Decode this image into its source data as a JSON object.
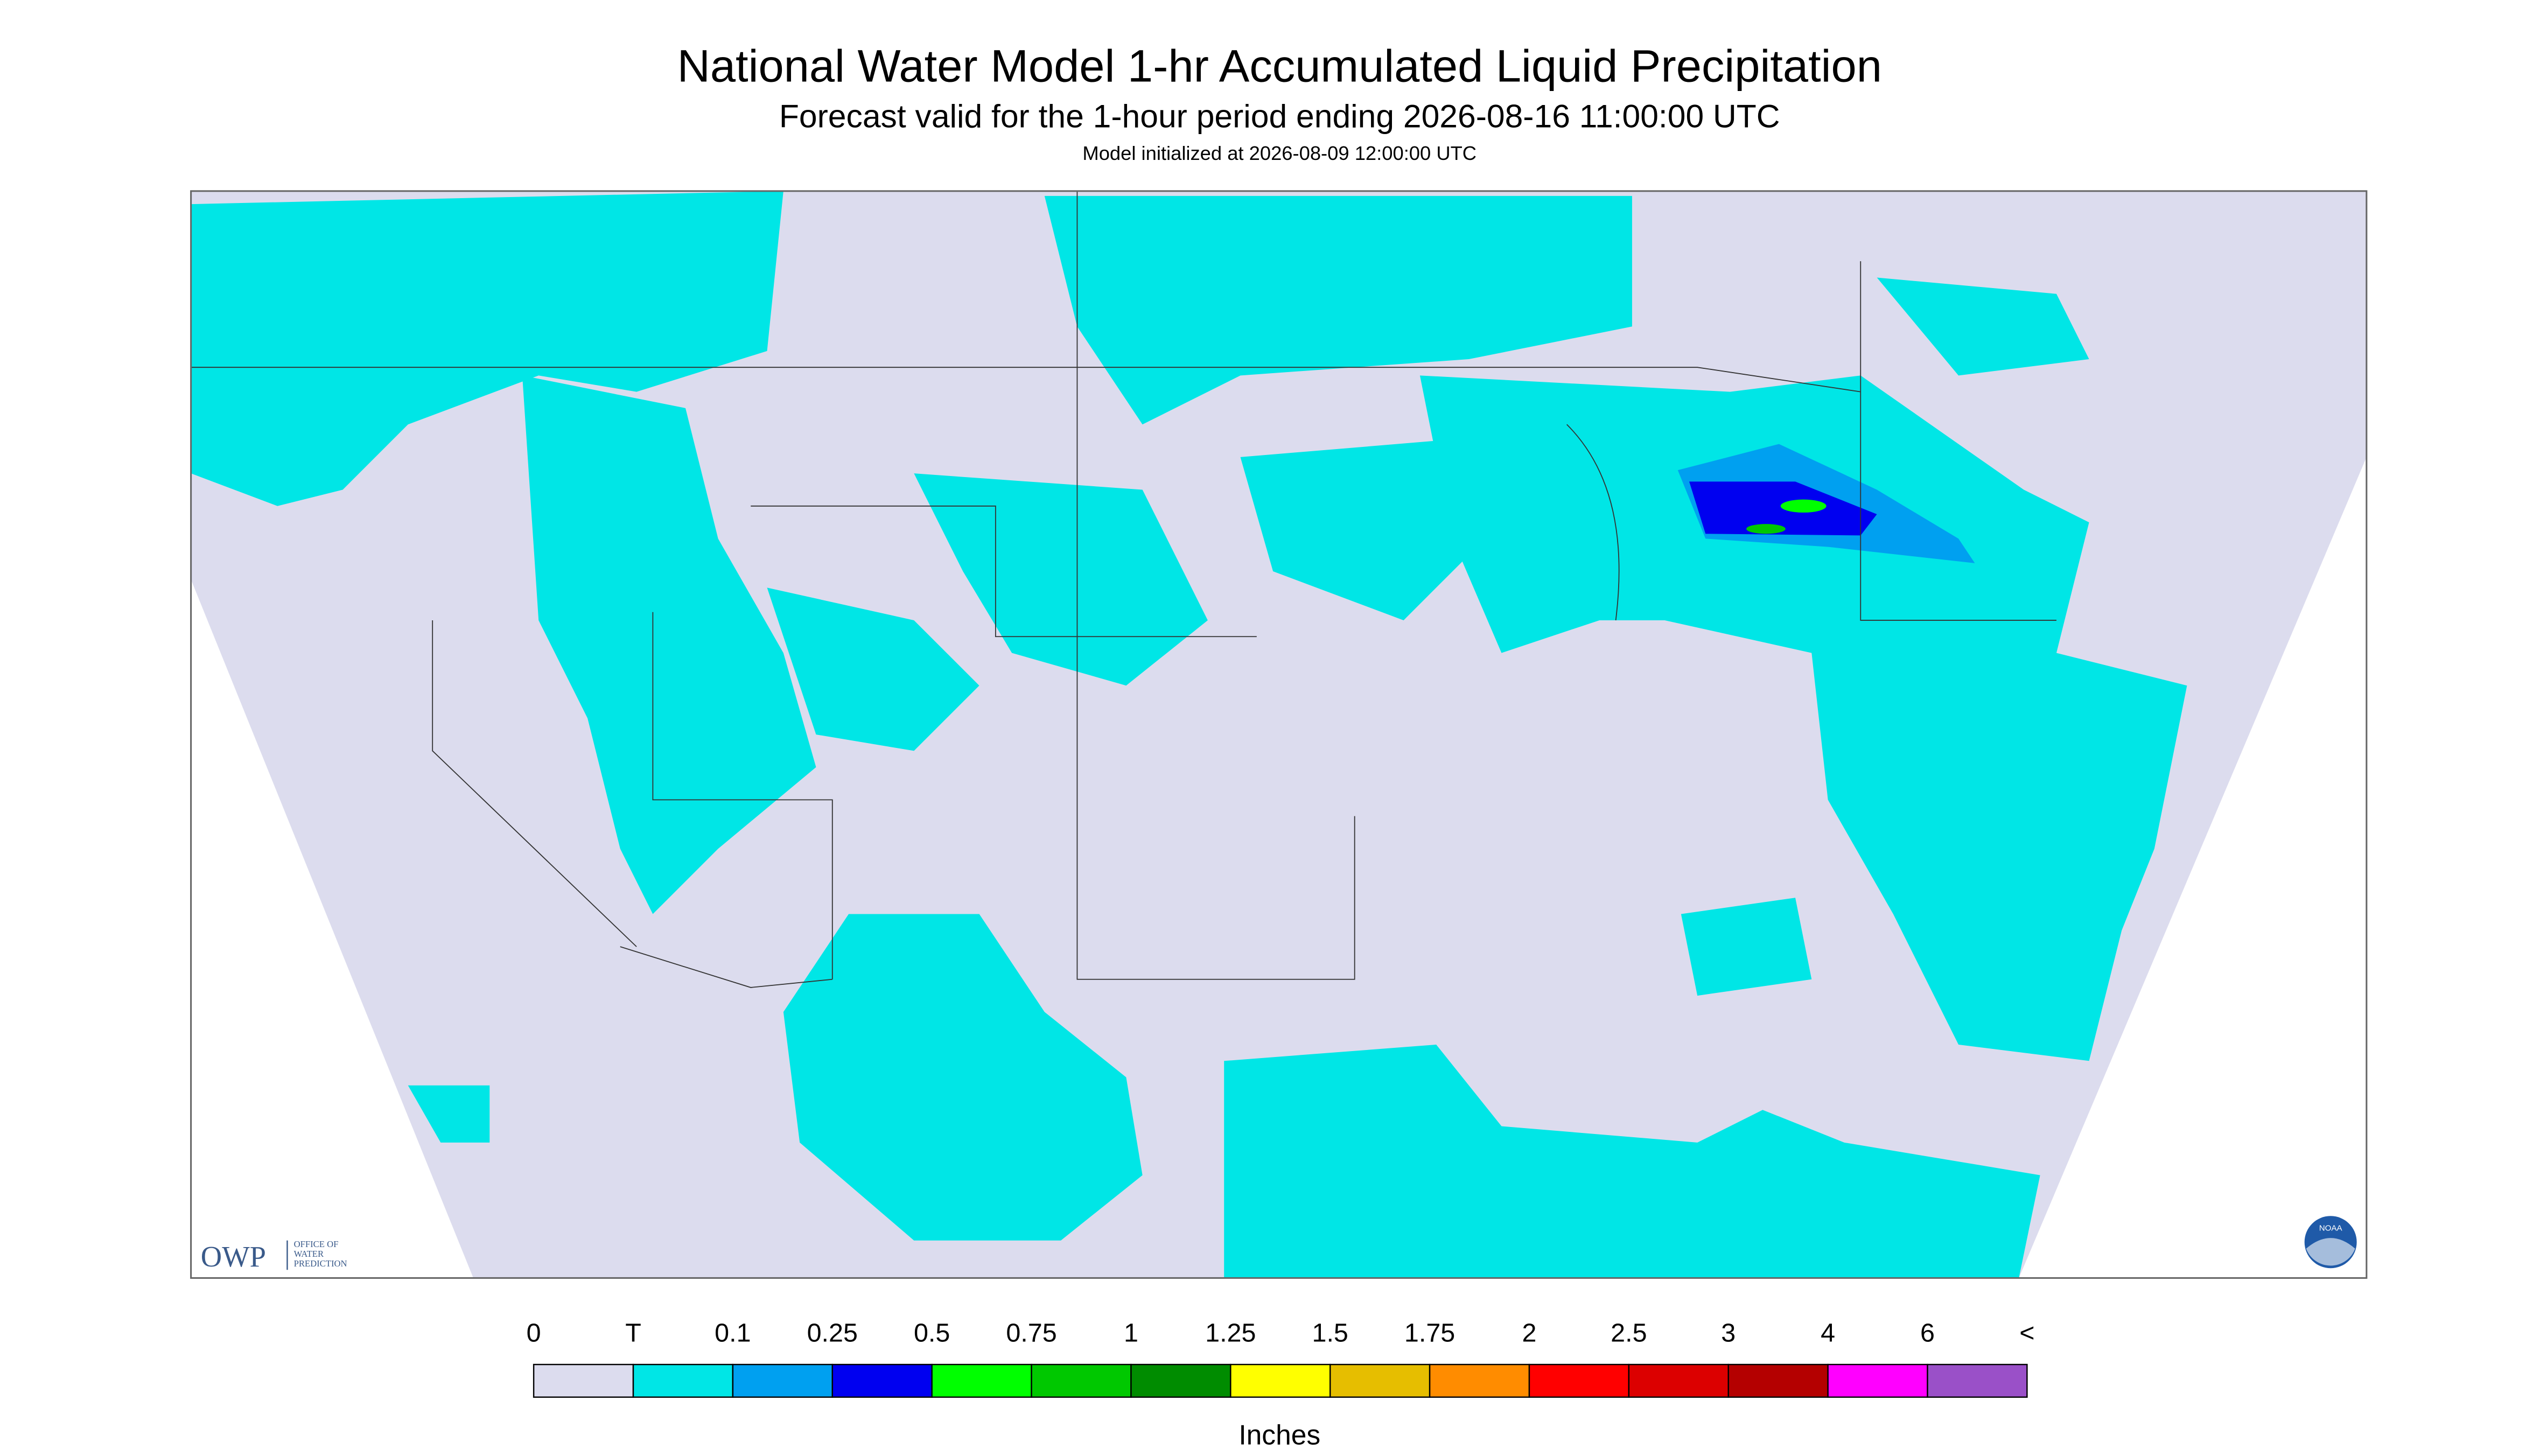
{
  "header": {
    "title": "National Water Model 1-hr Accumulated Liquid Precipitation",
    "subtitle": "Forecast valid for the 1-hour period ending 2026-08-16 11:00:00 UTC",
    "initialized": "Model initialized at 2026-08-09 12:00:00 UTC"
  },
  "logo": {
    "mark": "OWP",
    "text": [
      "OFFICE OF",
      "WATER",
      "PREDICTION"
    ],
    "badge": "NOAA"
  },
  "legend": {
    "labels": [
      "0",
      "T",
      "0.1",
      "0.25",
      "0.5",
      "0.75",
      "1",
      "1.25",
      "1.5",
      "1.75",
      "2",
      "2.5",
      "3",
      "4",
      "6",
      "<"
    ],
    "colors": [
      "#dcdcee",
      "#00e6e6",
      "#00a0f0",
      "#0000f0",
      "#00ff00",
      "#00c800",
      "#008c00",
      "#ffff00",
      "#e6be00",
      "#ff8c00",
      "#ff0000",
      "#dc0000",
      "#b40000",
      "#ff00ff",
      "#9a50c8"
    ],
    "unit": "Inches"
  }
}
